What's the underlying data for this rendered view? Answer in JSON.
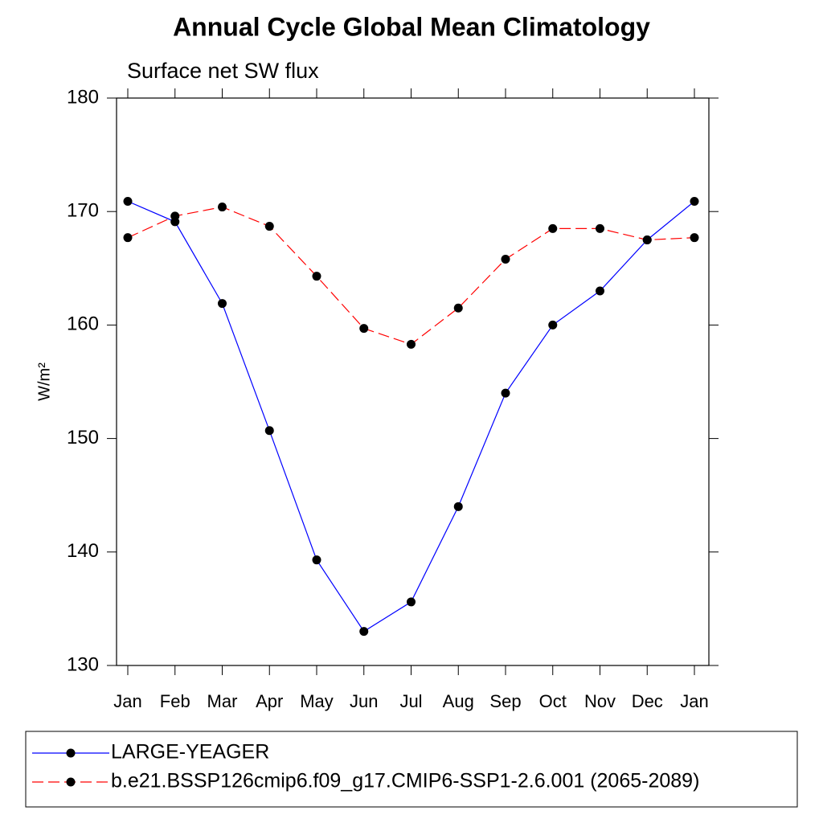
{
  "chart_data": {
    "type": "line",
    "title": "Annual Cycle Global Mean Climatology",
    "subtitle": "Surface net SW flux",
    "y_label": "W/m²",
    "categories": [
      "Jan",
      "Feb",
      "Mar",
      "Apr",
      "May",
      "Jun",
      "Jul",
      "Aug",
      "Sep",
      "Oct",
      "Nov",
      "Dec",
      "Jan"
    ],
    "series": [
      {
        "name": "LARGE-YEAGER",
        "color": "#0000ff",
        "dash": "solid",
        "values": [
          170.9,
          169.1,
          161.9,
          150.7,
          139.3,
          133.0,
          135.6,
          144.0,
          154.0,
          160.0,
          163.0,
          167.5,
          170.9
        ]
      },
      {
        "name": "b.e21.BSSP126cmip6.f09_g17.CMIP6-SSP1-2.6.001 (2065-2089)",
        "color": "#ff0000",
        "dash": "dashed",
        "values": [
          167.7,
          169.6,
          170.4,
          168.7,
          164.3,
          159.7,
          158.3,
          161.5,
          165.8,
          168.5,
          168.5,
          167.5,
          167.7
        ]
      }
    ],
    "ylim": [
      130,
      180
    ],
    "yticks": [
      130,
      140,
      150,
      160,
      170,
      180
    ]
  }
}
